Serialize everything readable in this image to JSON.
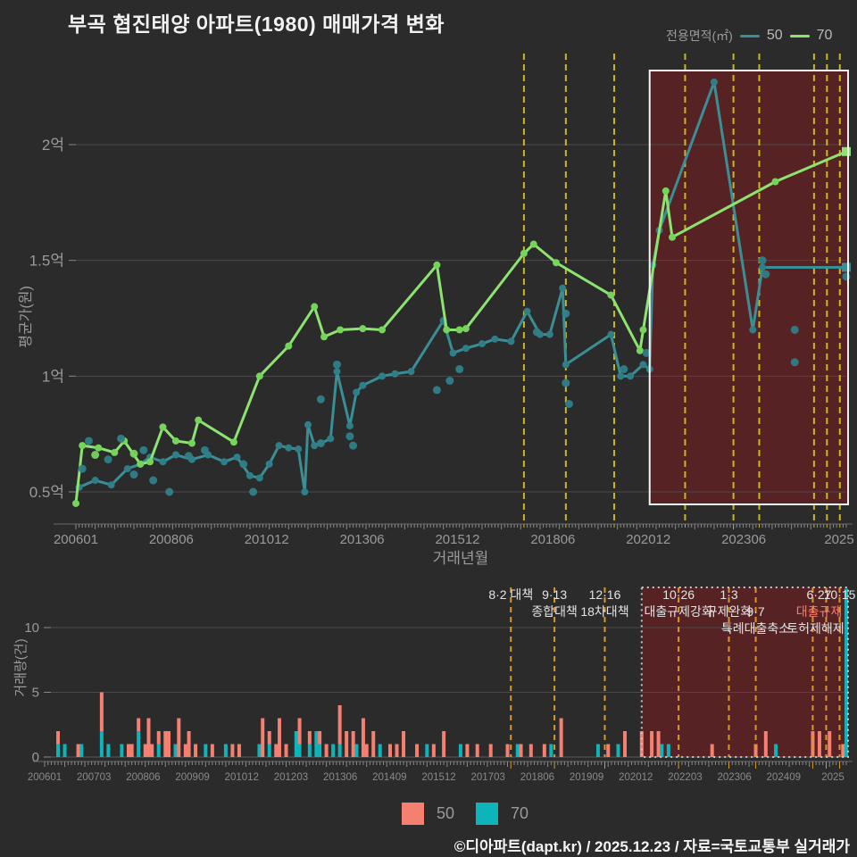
{
  "title": "부곡 협진태양 아파트(1980) 매매가격 변화",
  "legend_top": {
    "label": "전용면적(㎡)",
    "items": [
      {
        "name": "50",
        "color": "#3a8e96"
      },
      {
        "name": "70",
        "color": "#8de36f"
      }
    ]
  },
  "legend_bottom": {
    "items": [
      {
        "name": "50",
        "color": "#f57f70"
      },
      {
        "name": "70",
        "color": "#0db4ba"
      }
    ]
  },
  "footer": "©디아파트(dapt.kr) / 2025.12.23 / 자료=국토교통부 실거래가",
  "colors": {
    "background": "#2b2b2b",
    "grid": "#4a4a4a",
    "axis_text": "#9a9a9a",
    "tick": "#888888",
    "dashed_main": "#c9b727",
    "dashed_lower": "#d8992a",
    "highlight_fill": "rgba(128,26,30,0.52)",
    "highlight_border_main": "#f5f5f5",
    "highlight_border_lower": "#c8c8c8",
    "annotation_text": "#e3e3e3",
    "annotation_salmon": "#ef8070",
    "line_50": "#3a8e96",
    "dot_50": "#2f7e88",
    "line_70": "#8de36f",
    "dot_70": "#76d45c",
    "bar_50": "#f57f70",
    "bar_70": "#0db4ba"
  },
  "chart_data": [
    {
      "type": "line",
      "name": "price-chart",
      "ylabel": "평균가(원)",
      "xlabel": "거래년월",
      "y_ticks": [
        {
          "label": "2억",
          "v": 2.0
        },
        {
          "label": "1.5억",
          "v": 1.5
        },
        {
          "label": "1억",
          "v": 1.0
        },
        {
          "label": "0.5억",
          "v": 0.5
        }
      ],
      "x_ticks": [
        "200601",
        "200806",
        "201012",
        "201306",
        "201512",
        "201806",
        "202012",
        "202306",
        "2025"
      ],
      "x_range": [
        "200601",
        "202512"
      ],
      "ylim": [
        0.35,
        2.35
      ],
      "highlight": {
        "from": "202011",
        "to": "202512"
      },
      "series": [
        {
          "name": "50",
          "points": [
            [
              200602,
              0.52
            ],
            [
              200607,
              0.55
            ],
            [
              200612,
              0.53
            ],
            [
              200705,
              0.6
            ],
            [
              200709,
              0.62
            ],
            [
              200712,
              0.65
            ],
            [
              200804,
              0.63
            ],
            [
              200808,
              0.66
            ],
            [
              200901,
              0.64
            ],
            [
              200906,
              0.66
            ],
            [
              200911,
              0.63
            ],
            [
              201003,
              0.65
            ],
            [
              201007,
              0.57
            ],
            [
              201010,
              0.56
            ],
            [
              201101,
              0.62
            ],
            [
              201104,
              0.7
            ],
            [
              201107,
              0.69
            ],
            [
              201110,
              0.685
            ],
            [
              201112,
              0.5
            ],
            [
              201201,
              0.79
            ],
            [
              201203,
              0.7
            ],
            [
              201205,
              0.71
            ],
            [
              201208,
              0.73
            ],
            [
              201210,
              1.02
            ],
            [
              201302,
              0.785
            ],
            [
              201304,
              0.93
            ],
            [
              201306,
              0.96
            ],
            [
              201312,
              1.0
            ],
            [
              201404,
              1.01
            ],
            [
              201409,
              1.02
            ],
            [
              201507,
              1.24
            ],
            [
              201510,
              1.1
            ],
            [
              201602,
              1.12
            ],
            [
              201607,
              1.14
            ],
            [
              201611,
              1.16
            ],
            [
              201704,
              1.15
            ],
            [
              201709,
              1.28
            ],
            [
              201801,
              1.18
            ],
            [
              201804,
              1.18
            ],
            [
              201808,
              1.38
            ],
            [
              201809,
              1.05
            ],
            [
              201911,
              1.18
            ],
            [
              202002,
              1.0
            ],
            [
              202005,
              1.0
            ],
            [
              202009,
              1.05
            ],
            [
              202011,
              1.03
            ],
            [
              202012,
              1.48
            ],
            [
              202102,
              1.63
            ],
            [
              202207,
              2.27
            ],
            [
              202307,
              1.2
            ],
            [
              202310,
              1.47
            ],
            [
              202512,
              1.47
            ]
          ]
        },
        {
          "name": "70",
          "points": [
            [
              200601,
              0.45
            ],
            [
              200603,
              0.7
            ],
            [
              200608,
              0.69
            ],
            [
              200701,
              0.67
            ],
            [
              200704,
              0.72
            ],
            [
              200709,
              0.62
            ],
            [
              200712,
              0.63
            ],
            [
              200804,
              0.78
            ],
            [
              200808,
              0.72
            ],
            [
              200901,
              0.71
            ],
            [
              200903,
              0.81
            ],
            [
              201002,
              0.715
            ],
            [
              201010,
              1.0
            ],
            [
              201107,
              1.13
            ],
            [
              201203,
              1.3
            ],
            [
              201206,
              1.17
            ],
            [
              201211,
              1.2
            ],
            [
              201306,
              1.205
            ],
            [
              201312,
              1.2
            ],
            [
              201505,
              1.48
            ],
            [
              201508,
              1.2
            ],
            [
              201512,
              1.2
            ],
            [
              201602,
              1.205
            ],
            [
              201708,
              1.53
            ],
            [
              201711,
              1.57
            ],
            [
              201806,
              1.49
            ],
            [
              201911,
              1.35
            ],
            [
              202008,
              1.11
            ],
            [
              202009,
              1.2
            ],
            [
              202104,
              1.8
            ],
            [
              202106,
              1.6
            ],
            [
              202402,
              1.84
            ],
            [
              202512,
              1.97
            ]
          ]
        }
      ],
      "scatter": [
        {
          "s": "50",
          "ym": 200603,
          "v": 0.6
        },
        {
          "s": "50",
          "ym": 200605,
          "v": 0.72
        },
        {
          "s": "50",
          "ym": 200611,
          "v": 0.64
        },
        {
          "s": "50",
          "ym": 200703,
          "v": 0.73
        },
        {
          "s": "50",
          "ym": 200707,
          "v": 0.575
        },
        {
          "s": "50",
          "ym": 200710,
          "v": 0.68
        },
        {
          "s": "50",
          "ym": 200801,
          "v": 0.55
        },
        {
          "s": "50",
          "ym": 200806,
          "v": 0.5
        },
        {
          "s": "50",
          "ym": 200812,
          "v": 0.655
        },
        {
          "s": "50",
          "ym": 200905,
          "v": 0.68
        },
        {
          "s": "50",
          "ym": 201005,
          "v": 0.62
        },
        {
          "s": "50",
          "ym": 201008,
          "v": 0.5
        },
        {
          "s": "50",
          "ym": 201205,
          "v": 0.9
        },
        {
          "s": "50",
          "ym": 201205,
          "v": 0.71
        },
        {
          "s": "50",
          "ym": 201210,
          "v": 1.05
        },
        {
          "s": "50",
          "ym": 201302,
          "v": 0.74
        },
        {
          "s": "50",
          "ym": 201303,
          "v": 0.7
        },
        {
          "s": "50",
          "ym": 201505,
          "v": 0.94
        },
        {
          "s": "50",
          "ym": 201509,
          "v": 0.98
        },
        {
          "s": "50",
          "ym": 201512,
          "v": 1.03
        },
        {
          "s": "50",
          "ym": 201712,
          "v": 1.19
        },
        {
          "s": "50",
          "ym": 201809,
          "v": 1.27
        },
        {
          "s": "50",
          "ym": 201809,
          "v": 0.97
        },
        {
          "s": "50",
          "ym": 201810,
          "v": 0.88
        },
        {
          "s": "50",
          "ym": 202003,
          "v": 1.03
        },
        {
          "s": "50",
          "ym": 202010,
          "v": 1.1
        },
        {
          "s": "50",
          "ym": 202310,
          "v": 1.5
        },
        {
          "s": "50",
          "ym": 202311,
          "v": 1.44
        },
        {
          "s": "50",
          "ym": 202408,
          "v": 1.2
        },
        {
          "s": "50",
          "ym": 202408,
          "v": 1.06
        },
        {
          "s": "50",
          "ym": 202512,
          "v": 1.43
        },
        {
          "s": "70",
          "ym": 200607,
          "v": 0.66
        },
        {
          "s": "70",
          "ym": 200707,
          "v": 0.665
        }
      ]
    },
    {
      "type": "bar",
      "name": "volume-chart",
      "ylabel": "거래량(건)",
      "y_ticks": [
        {
          "label": "0",
          "v": 0
        },
        {
          "label": "5",
          "v": 5
        },
        {
          "label": "10",
          "v": 10
        }
      ],
      "x_ticks": [
        "200601",
        "200703",
        "200806",
        "200909",
        "201012",
        "201203",
        "201306",
        "201409",
        "201512",
        "201703",
        "201806",
        "201909",
        "202012",
        "202203",
        "202306",
        "202409",
        "2025"
      ],
      "x_range": [
        "200601",
        "202512"
      ],
      "highlight": {
        "from": "202011",
        "to": "202512"
      },
      "stack_order": [
        "70",
        "50"
      ],
      "bars": [
        [
          200605,
          1,
          1
        ],
        [
          200607,
          1,
          0
        ],
        [
          200611,
          0,
          1
        ],
        [
          200612,
          1,
          0
        ],
        [
          200706,
          2,
          3
        ],
        [
          200708,
          1,
          0
        ],
        [
          200712,
          1,
          0
        ],
        [
          200802,
          0,
          1
        ],
        [
          200803,
          0,
          1
        ],
        [
          200805,
          2,
          1
        ],
        [
          200807,
          0,
          1
        ],
        [
          200808,
          0,
          3
        ],
        [
          200809,
          0,
          1
        ],
        [
          200811,
          1,
          1
        ],
        [
          200901,
          0,
          2
        ],
        [
          200902,
          0,
          2
        ],
        [
          200904,
          1,
          0
        ],
        [
          200905,
          0,
          3
        ],
        [
          200907,
          0,
          1
        ],
        [
          200908,
          0,
          2
        ],
        [
          200910,
          0,
          1
        ],
        [
          201001,
          1,
          0
        ],
        [
          201003,
          0,
          1
        ],
        [
          201007,
          1,
          0
        ],
        [
          201009,
          0,
          1
        ],
        [
          201011,
          0,
          1
        ],
        [
          201105,
          1,
          0
        ],
        [
          201106,
          0,
          3
        ],
        [
          201108,
          1,
          1
        ],
        [
          201110,
          0,
          1
        ],
        [
          201111,
          0,
          3
        ],
        [
          201201,
          0,
          1
        ],
        [
          201204,
          2,
          0
        ],
        [
          201205,
          1,
          2
        ],
        [
          201208,
          1,
          1
        ],
        [
          201210,
          2,
          0
        ],
        [
          201211,
          1,
          1
        ],
        [
          201301,
          0,
          1
        ],
        [
          201303,
          1,
          0
        ],
        [
          201305,
          1,
          3
        ],
        [
          201307,
          0,
          2
        ],
        [
          201309,
          0,
          2
        ],
        [
          201310,
          1,
          0
        ],
        [
          201312,
          0,
          3
        ],
        [
          201401,
          0,
          1
        ],
        [
          201403,
          0,
          2
        ],
        [
          201405,
          1,
          0
        ],
        [
          201408,
          0,
          1
        ],
        [
          201410,
          0,
          1
        ],
        [
          201412,
          0,
          2
        ],
        [
          201504,
          0,
          1
        ],
        [
          201507,
          1,
          0
        ],
        [
          201509,
          0,
          1
        ],
        [
          201512,
          0,
          2
        ],
        [
          201605,
          1,
          0
        ],
        [
          201607,
          0,
          1
        ],
        [
          201610,
          0,
          1
        ],
        [
          201702,
          0,
          1
        ],
        [
          201707,
          0,
          1
        ],
        [
          201710,
          1,
          0
        ],
        [
          201711,
          0,
          1
        ],
        [
          201802,
          0,
          1
        ],
        [
          201806,
          0,
          1
        ],
        [
          201808,
          1,
          0
        ],
        [
          201811,
          0,
          3
        ],
        [
          201910,
          1,
          0
        ],
        [
          202001,
          0,
          1
        ],
        [
          202004,
          1,
          0
        ],
        [
          202006,
          0,
          2
        ],
        [
          202011,
          0,
          2
        ],
        [
          202102,
          0,
          2
        ],
        [
          202104,
          0,
          2
        ],
        [
          202105,
          1,
          0
        ],
        [
          202107,
          1,
          0
        ],
        [
          202208,
          0,
          1
        ],
        [
          202309,
          0,
          1
        ],
        [
          202312,
          0,
          2
        ],
        [
          202403,
          1,
          0
        ],
        [
          202502,
          0,
          2
        ],
        [
          202504,
          0,
          2
        ],
        [
          202507,
          0,
          2
        ],
        [
          202511,
          0,
          1
        ],
        [
          202512,
          13,
          0
        ]
      ]
    }
  ],
  "policies": [
    {
      "ym": "201708",
      "date": "8·2",
      "label": "대책",
      "inline": true
    },
    {
      "ym": "201809",
      "date": "9·13",
      "label": "종합대책"
    },
    {
      "ym": "201912",
      "date": "12·16",
      "label": "18차대책"
    },
    {
      "ym": "202110",
      "date": "10·26",
      "label": "대출규제강화"
    },
    {
      "ym": "202301",
      "date": "1·3",
      "label": "규제완화"
    },
    {
      "ym": "202309",
      "date": "9·7",
      "label": "특례대출축소",
      "date_row": 2,
      "label_row": 3
    },
    {
      "ym": "202502",
      "date": "",
      "label": ""
    },
    {
      "ym": "202506",
      "date": "6·27",
      "label": "대출규제",
      "salmon": true,
      "dx": -8
    },
    {
      "ym": "202510",
      "date": "10·15",
      "label": "토허제해제",
      "label_row": 3,
      "label_dx": -27
    }
  ]
}
